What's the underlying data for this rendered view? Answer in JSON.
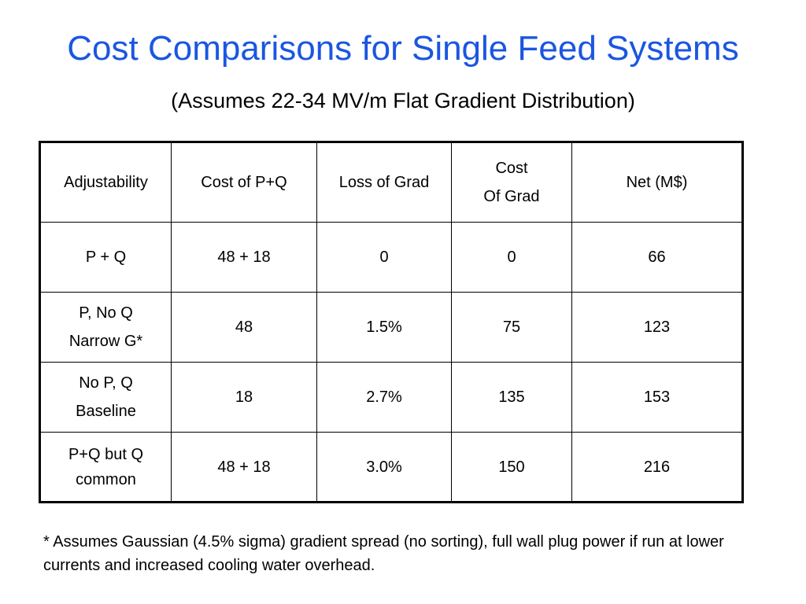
{
  "title": "Cost Comparisons for Single Feed Systems",
  "subtitle": "(Assumes 22-34 MV/m Flat Gradient Distribution)",
  "table": {
    "headers": [
      {
        "lines": [
          "Adjustability"
        ]
      },
      {
        "lines": [
          "Cost of P+Q"
        ]
      },
      {
        "lines": [
          "Loss of Grad"
        ]
      },
      {
        "lines": [
          "Cost",
          "Of Grad"
        ]
      },
      {
        "lines": [
          "Net (M$)"
        ]
      }
    ],
    "rows": [
      {
        "adjustability": [
          "P + Q"
        ],
        "cost_pq": "48 + 18",
        "loss_of_grad": "0",
        "cost_of_grad": "0",
        "net": "66"
      },
      {
        "adjustability": [
          "P, No Q",
          "Narrow G*"
        ],
        "cost_pq": "48",
        "loss_of_grad": "1.5%",
        "cost_of_grad": "75",
        "net": "123"
      },
      {
        "adjustability": [
          "No P, Q",
          "Baseline"
        ],
        "cost_pq": "18",
        "loss_of_grad": "2.7%",
        "cost_of_grad": "135",
        "net": "153"
      },
      {
        "adjustability": [
          "P+Q but Q",
          "common"
        ],
        "cost_pq": "48 + 18",
        "loss_of_grad": "3.0%",
        "cost_of_grad": "150",
        "net": "216"
      }
    ]
  },
  "footnote": "* Assumes Gaussian (4.5% sigma) gradient spread (no sorting), full wall plug power if run at lower currents and increased cooling water overhead.",
  "colors": {
    "title": "#1a56e0",
    "text": "#000000",
    "background": "#ffffff"
  }
}
